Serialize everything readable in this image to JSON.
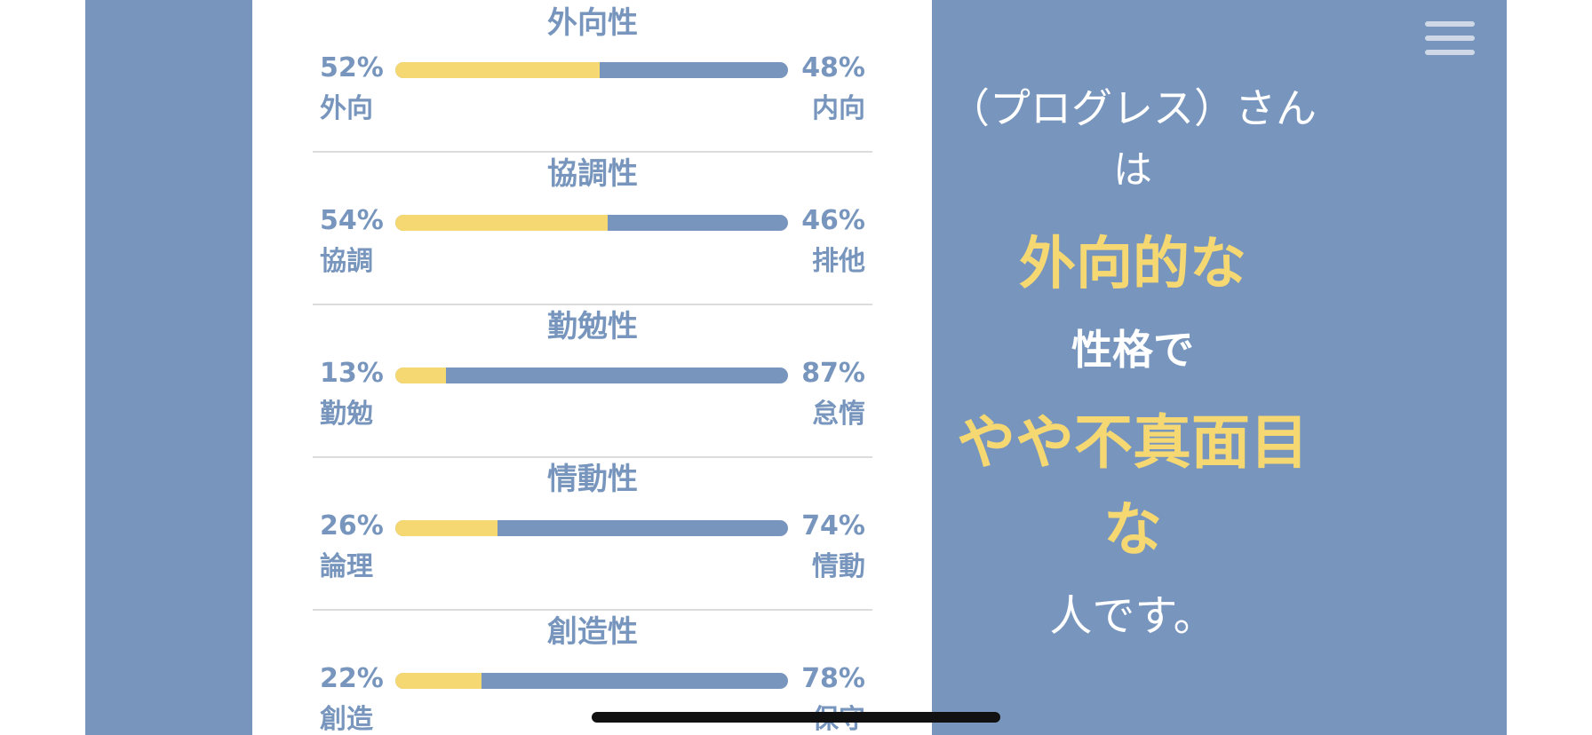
{
  "traits": [
    {
      "title": "外向性",
      "left_pct": "52%",
      "left_label": "外向",
      "right_pct": "48%",
      "right_label": "内向",
      "fill": 0.52
    },
    {
      "title": "協調性",
      "left_pct": "54%",
      "left_label": "協調",
      "right_pct": "46%",
      "right_label": "排他",
      "fill": 0.54
    },
    {
      "title": "勤勉性",
      "left_pct": "13%",
      "left_label": "勤勉",
      "right_pct": "87%",
      "right_label": "怠惰",
      "fill": 0.13
    },
    {
      "title": "情動性",
      "left_pct": "26%",
      "left_label": "論理",
      "right_pct": "74%",
      "right_label": "情動",
      "fill": 0.26
    },
    {
      "title": "創造性",
      "left_pct": "22%",
      "left_label": "創造",
      "right_pct": "78%",
      "right_label": "保守",
      "fill": 0.22
    }
  ],
  "result": {
    "name_line": "（プログレス）さん",
    "wa": "は",
    "trait1": "外向的な",
    "seikaku": "性格で",
    "trait2_line1": "やや不真面目",
    "trait2_line2": "な",
    "ending": "人です。"
  },
  "menu_icon": "hamburger-menu-icon",
  "colors": {
    "accent_yellow": "#f6d872",
    "accent_blue": "#7896bd"
  }
}
